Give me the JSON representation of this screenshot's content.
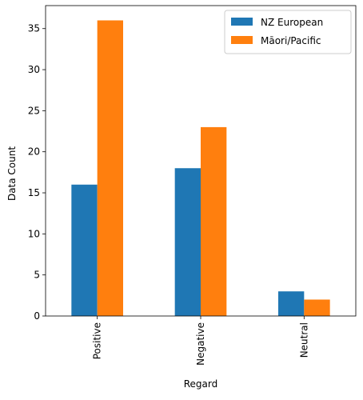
{
  "chart_data": {
    "type": "bar",
    "title": "",
    "xlabel": "Regard",
    "ylabel": "Data Count",
    "categories": [
      "Positive",
      "Negative",
      "Neutral"
    ],
    "series": [
      {
        "name": "NZ European",
        "values": [
          16,
          18,
          3
        ],
        "color": "#1f77b4"
      },
      {
        "name": "Māori/Pacific",
        "values": [
          36,
          23,
          2
        ],
        "color": "#ff7f0e"
      }
    ],
    "ylim": [
      0,
      37.8
    ],
    "yticks": [
      0,
      5,
      10,
      15,
      20,
      25,
      30,
      35
    ],
    "legend": {
      "position": "top-right"
    },
    "grid": false
  }
}
